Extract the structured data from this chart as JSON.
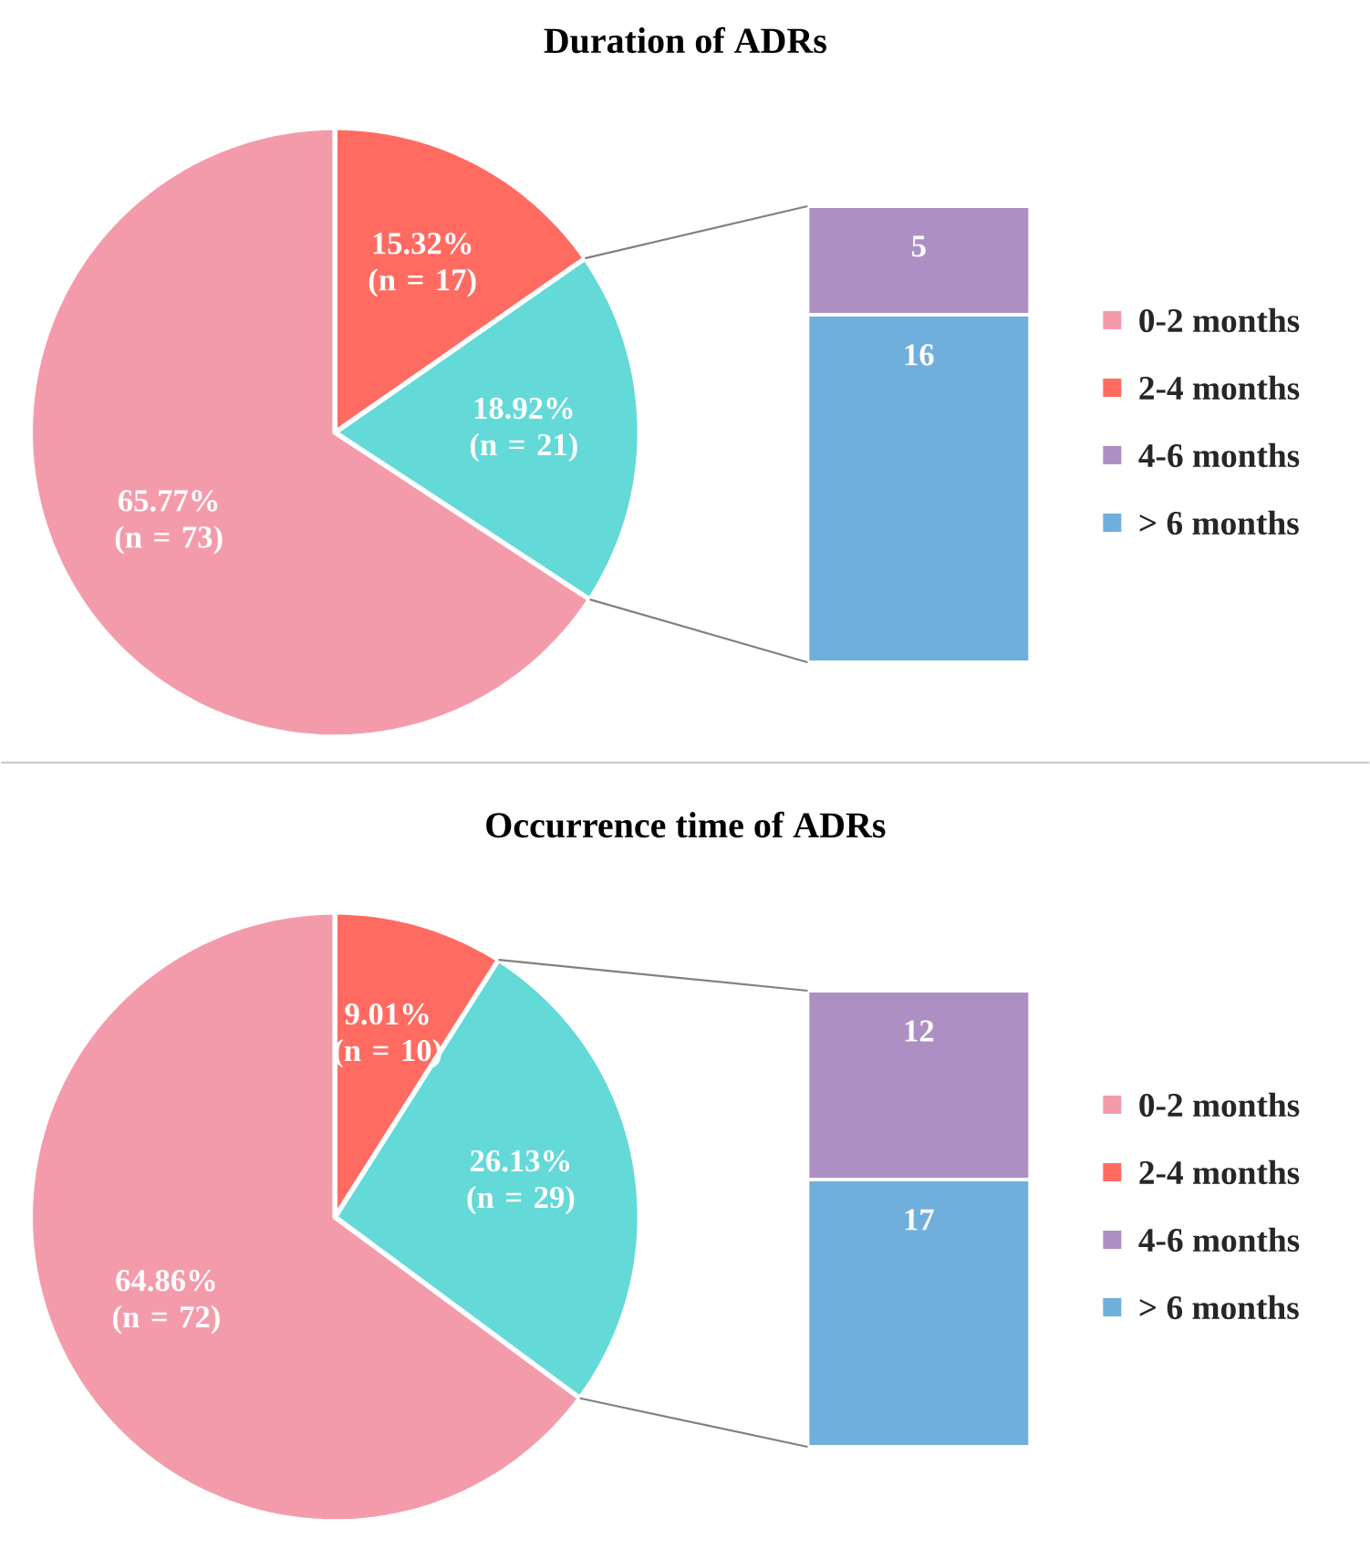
{
  "chart_data": [
    {
      "type": "pie",
      "title": "Duration of ADRs",
      "categories": [
        "0-2 months",
        null,
        "2-4 months"
      ],
      "values": [
        65.77,
        18.92,
        15.32
      ],
      "colors": [
        "#f49bab",
        "#63d9d8",
        "#ff6b61"
      ],
      "value_labels": [
        "65.77% (n = 73)",
        "18.92% (n = 21)",
        "15.32% (n = 17)"
      ]
    },
    {
      "type": "bar",
      "stacked": true,
      "categories": [
        null
      ],
      "data_labels": true,
      "legend": "right",
      "series": [
        {
          "name": "> 6 months",
          "color": "#70afdc",
          "values": [
            16
          ]
        },
        {
          "name": "4-6 months",
          "color": "#ae8fc4",
          "values": [
            5
          ]
        }
      ]
    },
    {
      "type": "pie",
      "title": "Occurrence time of ADRs",
      "categories": [
        "0-2 months",
        null,
        "2-4 months"
      ],
      "values": [
        64.86,
        26.13,
        9.01
      ],
      "colors": [
        "#f49bab",
        "#63d9d8",
        "#ff6b61"
      ],
      "value_labels": [
        "64.86% (n = 72)",
        "26.13% (n = 29)",
        "9.01% (n = 10)"
      ]
    },
    {
      "type": "bar",
      "stacked": true,
      "categories": [
        null
      ],
      "data_labels": true,
      "legend": "right",
      "series": [
        {
          "name": "> 6 months",
          "color": "#70afdc",
          "values": [
            17
          ]
        },
        {
          "name": "4-6 months",
          "color": "#ae8fc4",
          "values": [
            12
          ]
        }
      ]
    }
  ]
}
